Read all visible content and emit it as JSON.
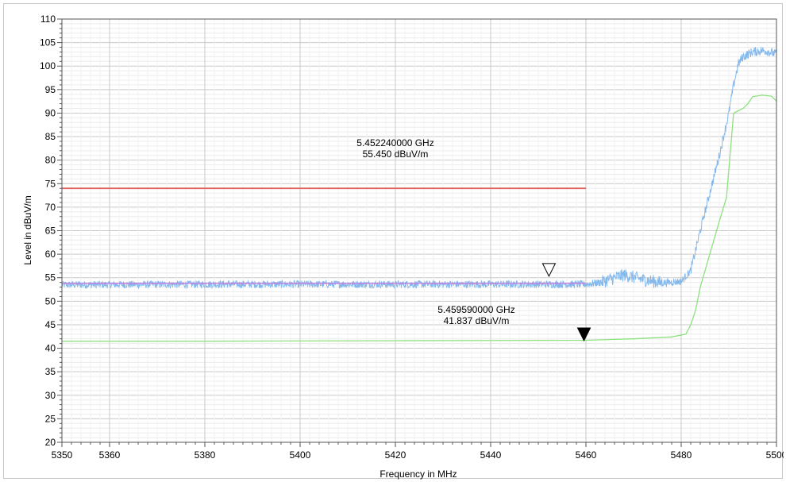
{
  "chart_data": {
    "type": "line",
    "title": "",
    "xlabel": "Frequency in MHz",
    "ylabel": "Level in dBuV/m",
    "xlim": [
      5350,
      5500
    ],
    "ylim": [
      20,
      110
    ],
    "x_ticks": [
      "5350",
      "5360",
      "5380",
      "5400",
      "5420",
      "5440",
      "5460",
      "5480",
      "5500"
    ],
    "y_ticks": [
      "20",
      "25",
      "30",
      "35",
      "40",
      "45",
      "50",
      "55",
      "60",
      "65",
      "70",
      "75",
      "80",
      "85",
      "90",
      "95",
      "100",
      "105",
      "110"
    ],
    "grid": true,
    "legend": "none",
    "series": [
      {
        "color": "#85b9ec",
        "style": "noisy",
        "x": [
          5350,
          5380,
          5420,
          5460,
          5463,
          5468,
          5472,
          5476,
          5480,
          5482,
          5484,
          5486,
          5488,
          5490,
          5491,
          5492,
          5493,
          5495,
          5497,
          5498,
          5500
        ],
        "y": [
          53.5,
          53.6,
          53.6,
          53.6,
          54.0,
          55.6,
          54.6,
          53.9,
          54.2,
          56.5,
          65.0,
          73.0,
          81.0,
          90.0,
          96.0,
          100.5,
          102.0,
          103.0,
          103.3,
          103.2,
          102.5
        ]
      },
      {
        "color": "#c77be0",
        "style": "solid",
        "x": [
          5350,
          5460
        ],
        "y": [
          53.8,
          53.8
        ]
      },
      {
        "color": "#8de17e",
        "style": "solid",
        "x": [
          5350,
          5380,
          5420,
          5460,
          5470,
          5478,
          5481,
          5482,
          5483,
          5484,
          5486,
          5488,
          5489.5,
          5490,
          5491,
          5493,
          5494,
          5495,
          5497,
          5499,
          5500
        ],
        "y": [
          41.5,
          41.5,
          41.6,
          41.7,
          42.0,
          42.4,
          43.0,
          45.0,
          48.0,
          53.0,
          60.0,
          67.0,
          72.0,
          78.0,
          90.0,
          91.0,
          92.0,
          93.5,
          93.8,
          93.6,
          92.5
        ]
      },
      {
        "color": "#e0605a",
        "style": "solid",
        "x": [
          5350,
          5460
        ],
        "y": [
          74,
          74
        ]
      }
    ],
    "markers": [
      {
        "x": 5452.24,
        "y": 56.5,
        "shape": "open-triangle-down",
        "freq_label": "5.452240000 GHz",
        "level_label": "55.450 dBuV/m",
        "label_at": [
          5420,
          83
        ]
      },
      {
        "x": 5459.59,
        "y": 42.8,
        "shape": "filled-triangle-down",
        "freq_label": "5.459590000 GHz",
        "level_label": "41.837 dBuV/m",
        "label_at": [
          5437,
          47.5
        ]
      }
    ]
  }
}
